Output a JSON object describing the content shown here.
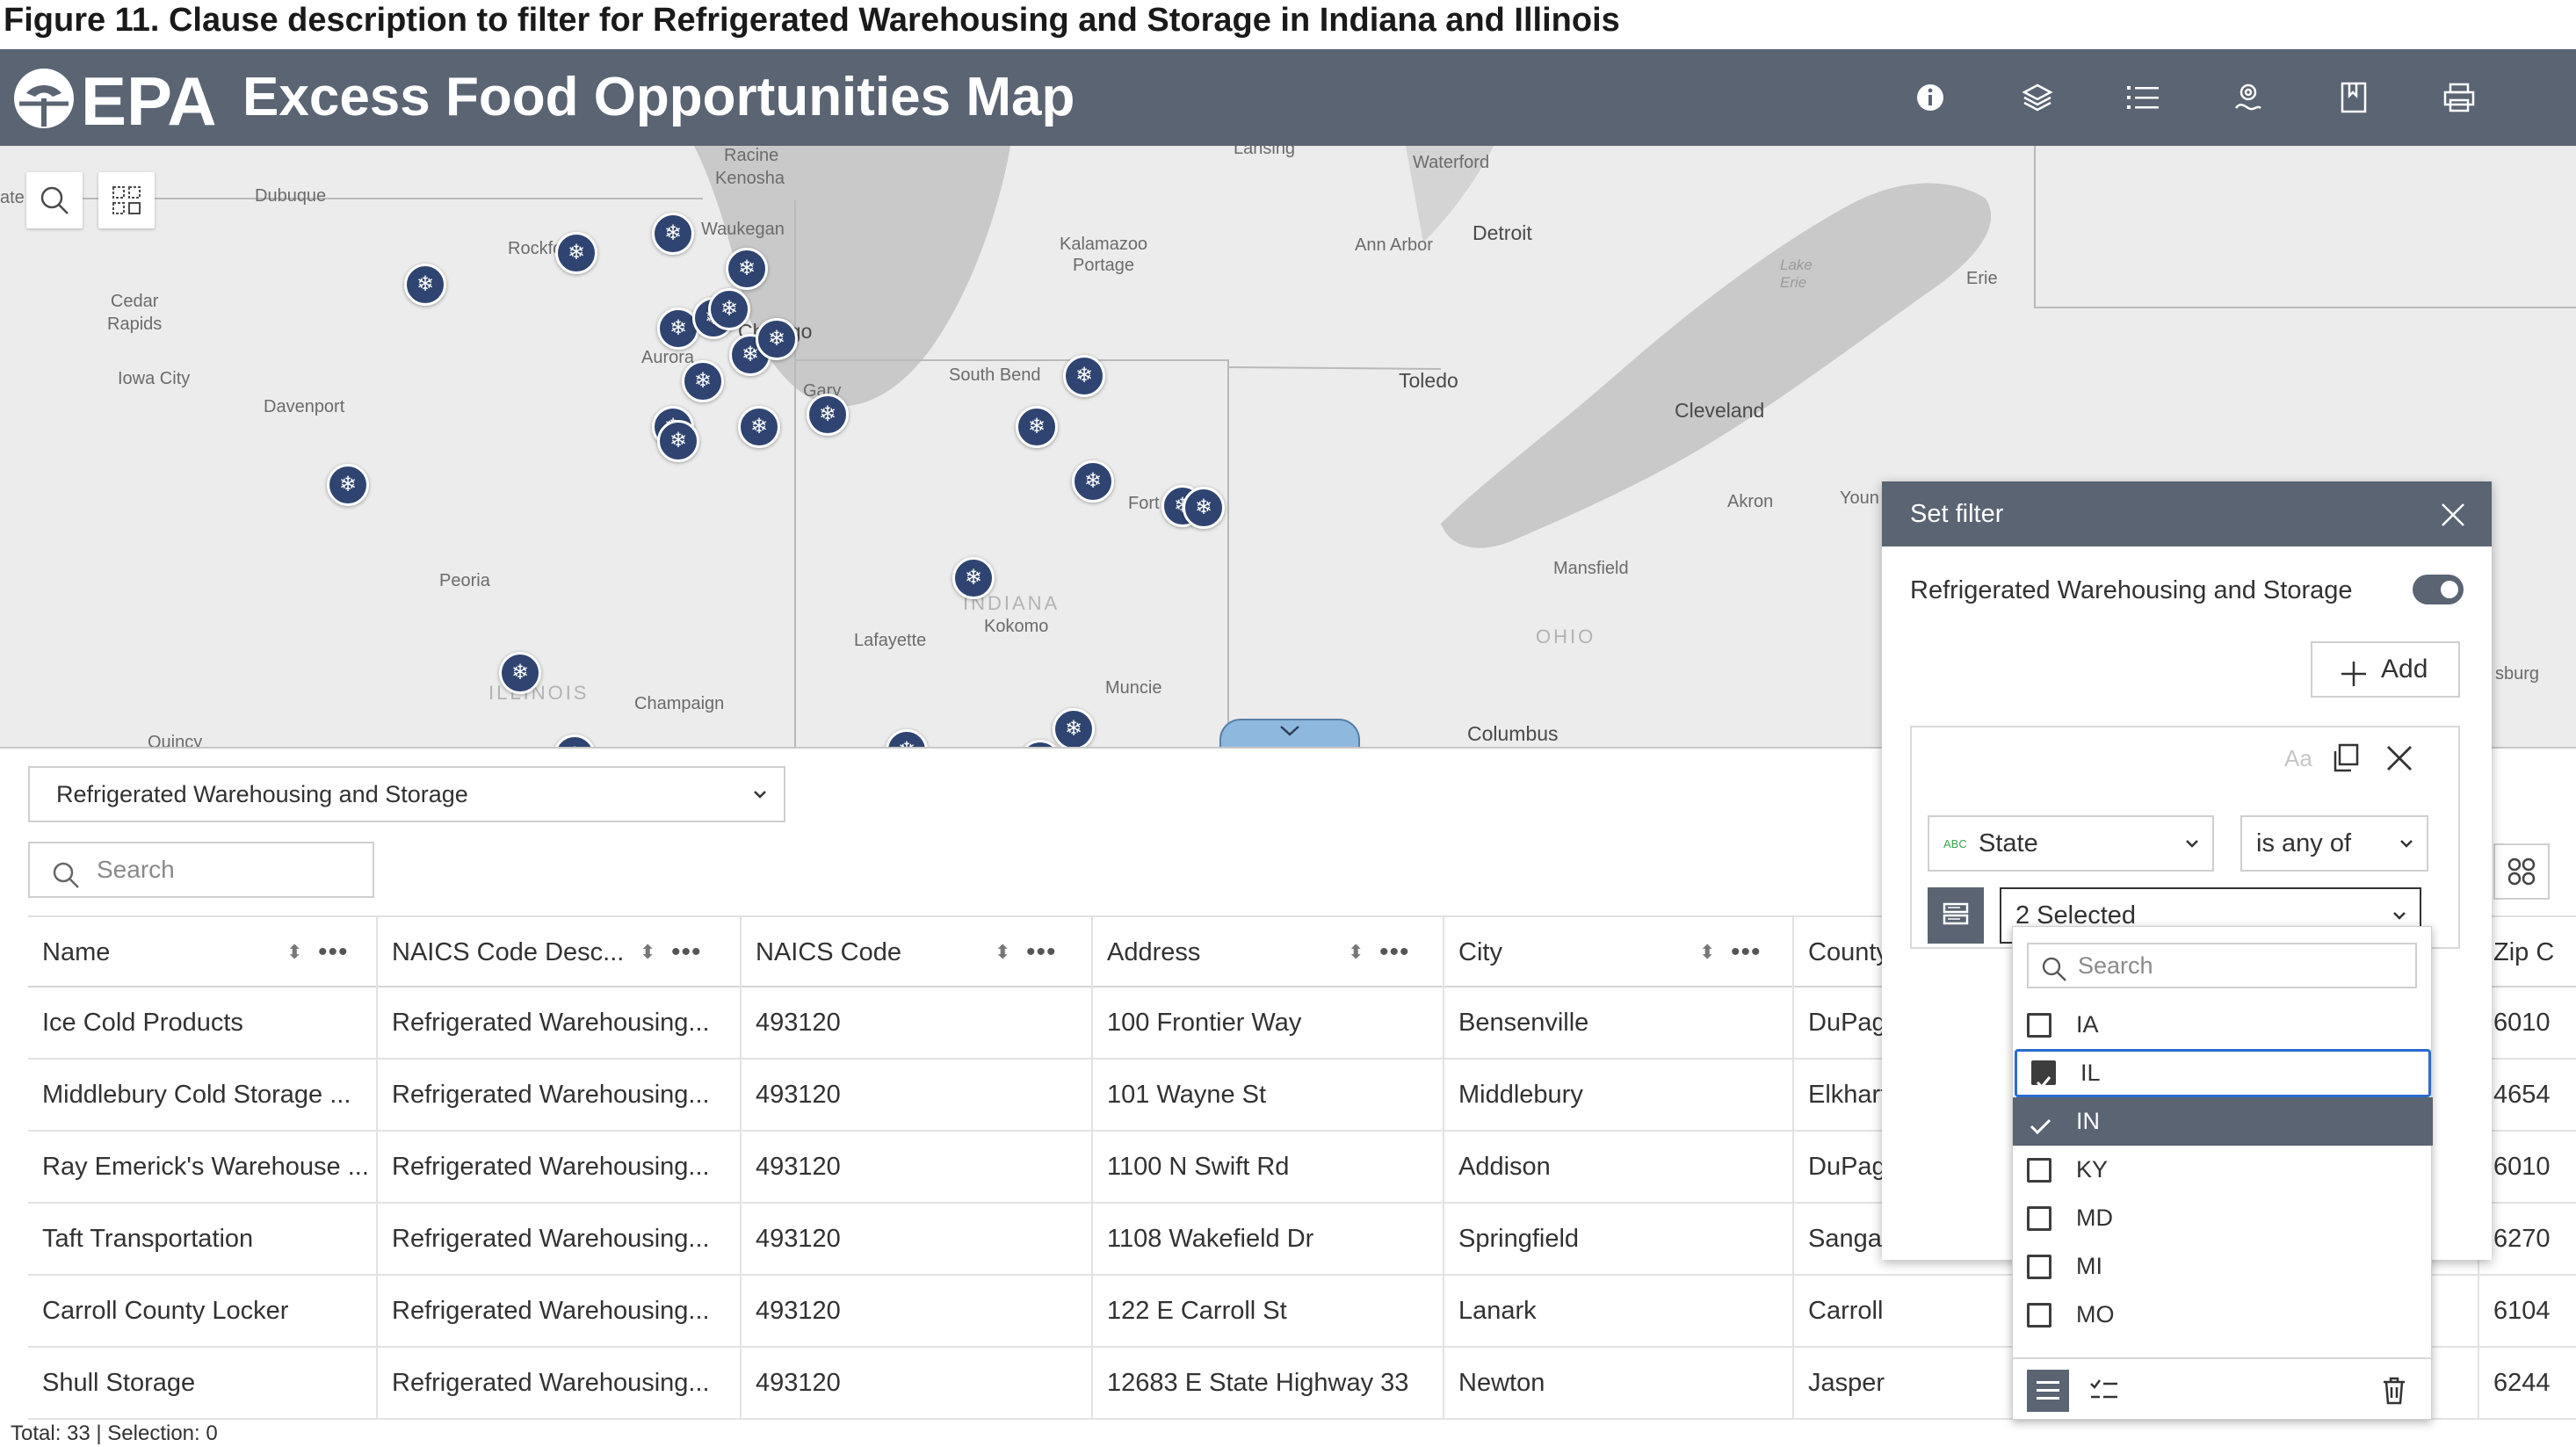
{
  "caption": "Figure 11. Clause description to filter for Refrigerated Warehousing and Storage in Indiana and Illinois",
  "header": {
    "logo_text": "EPA",
    "title": "Excess Food Opportunities Map",
    "icons": [
      "info-icon",
      "layers-icon",
      "legend-list-icon",
      "basemap-icon",
      "bookmark-icon",
      "print-icon"
    ]
  },
  "map": {
    "labels": {
      "racine": "Racine",
      "lansing": "Lansing",
      "waterford": "Waterford",
      "kenosha": "Kenosha",
      "dubuque": "Dubuque",
      "waukegan": "Waukegan",
      "rockford": "Rockford",
      "kalamazoo": "Kalamazoo\nPortage",
      "ann_arbor": "Ann Arbor",
      "detroit": "Detroit",
      "cedar_rapids": "Cedar\nRapids",
      "chicago": "Chicago",
      "aurora": "Aurora",
      "iowa_city": "Iowa City",
      "davenport": "Davenport",
      "gary": "Gary",
      "south_bend": "South Bend",
      "toledo": "Toledo",
      "cleveland": "Cleveland",
      "lake_erie": "Lake\nErie",
      "erie": "Erie",
      "fort_wayne": "Fort Wayne",
      "akron": "Akron",
      "youngstown": "Youn",
      "peoria": "Peoria",
      "indiana": "INDIANA",
      "kokomo": "Kokomo",
      "mansfield": "Mansfield",
      "ohio": "OHIO",
      "lafayette": "Lafayette",
      "illinois": "ILLINOIS",
      "champaign": "Champaign",
      "muncie": "Muncie",
      "columbus": "Columbus",
      "pittsburgh": "sburg",
      "quincy": "Quincy",
      "waterloo": "ate"
    }
  },
  "table": {
    "layer_select": "Refrigerated Warehousing and Storage",
    "search_placeholder": "Search",
    "columns": [
      "Name",
      "NAICS Code Desc...",
      "NAICS Code",
      "Address",
      "City",
      "County",
      "Zip C"
    ],
    "rows": [
      [
        "Ice Cold Products",
        "Refrigerated Warehousing...",
        "493120",
        "100 Frontier Way",
        "Bensenville",
        "DuPage",
        "6010"
      ],
      [
        "Middlebury Cold Storage ...",
        "Refrigerated Warehousing...",
        "493120",
        "101 Wayne St",
        "Middlebury",
        "Elkhart",
        "4654"
      ],
      [
        "Ray Emerick's Warehouse ...",
        "Refrigerated Warehousing...",
        "493120",
        "1100 N Swift Rd",
        "Addison",
        "DuPage",
        "6010"
      ],
      [
        "Taft Transportation",
        "Refrigerated Warehousing...",
        "493120",
        "1108 Wakefield Dr",
        "Springfield",
        "Sangam",
        "6270"
      ],
      [
        "Carroll County Locker",
        "Refrigerated Warehousing...",
        "493120",
        "122 E Carroll St",
        "Lanark",
        "Carroll",
        "6104"
      ],
      [
        "Shull Storage",
        "Refrigerated Warehousing...",
        "493120",
        "12683 E State Highway 33",
        "Newton",
        "Jasper",
        "6244"
      ]
    ],
    "footer": "Total: 33 | Selection: 0"
  },
  "filter": {
    "header": "Set filter",
    "title": "Refrigerated Warehousing and Storage",
    "toggle_on": true,
    "add_label": "Add",
    "case_label": "Aa",
    "field_type": "ABC",
    "field": "State",
    "operator": "is any of",
    "values_summary": "2 Selected",
    "dropdown": {
      "search_placeholder": "Search",
      "options": [
        {
          "label": "IA",
          "checked": false
        },
        {
          "label": "IL",
          "checked": true
        },
        {
          "label": "IN",
          "checked": true
        },
        {
          "label": "KY",
          "checked": false
        },
        {
          "label": "MD",
          "checked": false
        },
        {
          "label": "MI",
          "checked": false
        },
        {
          "label": "MO",
          "checked": false
        }
      ]
    }
  },
  "colors": {
    "header_bg": "#5a6472",
    "marker": "#2f4470",
    "map_bg": "#ececec",
    "water": "#c9c9c9",
    "focus": "#2a6bd1"
  }
}
